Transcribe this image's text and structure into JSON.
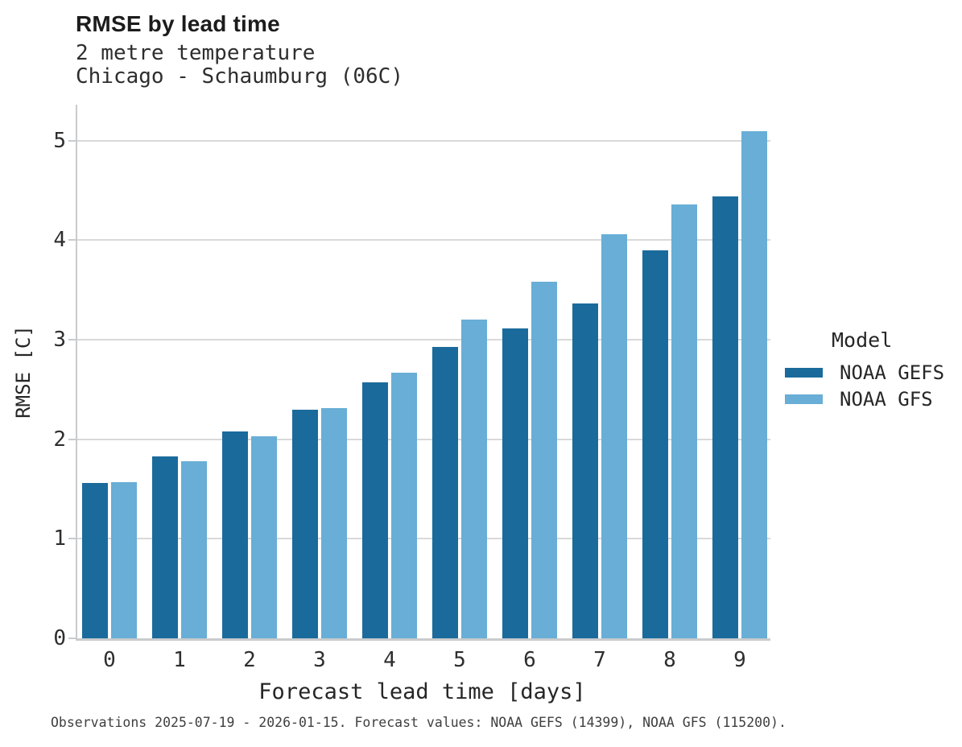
{
  "header": {
    "title": "RMSE by lead time",
    "subtitle_line1": "2 metre temperature",
    "subtitle_line2": "Chicago - Schaumburg (06C)"
  },
  "legend": {
    "title": "Model",
    "entries": [
      {
        "label": "NOAA GEFS",
        "color": "#1a6b9c"
      },
      {
        "label": "NOAA GFS",
        "color": "#68aed6"
      }
    ]
  },
  "footer": {
    "note": "Observations 2025-07-19 - 2026-01-15. Forecast values: NOAA GEFS (14399), NOAA GFS (115200)."
  },
  "colors": {
    "gefs_blue": "#1a6b9c",
    "gfs_blue": "#68aed6",
    "gridline": "#d9d9d9",
    "axis": "#c9cbcd"
  },
  "chart_data": {
    "type": "bar",
    "title": "RMSE by lead time",
    "subtitle": [
      "2 metre temperature",
      "Chicago - Schaumburg (06C)"
    ],
    "categories": [
      "0",
      "1",
      "2",
      "3",
      "4",
      "5",
      "6",
      "7",
      "8",
      "9"
    ],
    "series": [
      {
        "name": "NOAA GEFS",
        "color": "#1a6b9c",
        "values": [
          1.56,
          1.83,
          2.08,
          2.3,
          2.57,
          2.93,
          3.11,
          3.36,
          3.9,
          4.44
        ]
      },
      {
        "name": "NOAA GFS",
        "color": "#68aed6",
        "values": [
          1.57,
          1.78,
          2.03,
          2.31,
          2.67,
          3.2,
          3.58,
          4.06,
          4.36,
          5.09
        ]
      }
    ],
    "xlabel": "Forecast lead time [days]",
    "ylabel": "RMSE [C]",
    "ylim": [
      0,
      5.36
    ],
    "yticks": [
      0,
      1,
      2,
      3,
      4,
      5
    ],
    "grid": "horizontal",
    "legend_position": "right",
    "caption": "Observations 2025-07-19 - 2026-01-15. Forecast values: NOAA GEFS (14399), NOAA GFS (115200)."
  }
}
